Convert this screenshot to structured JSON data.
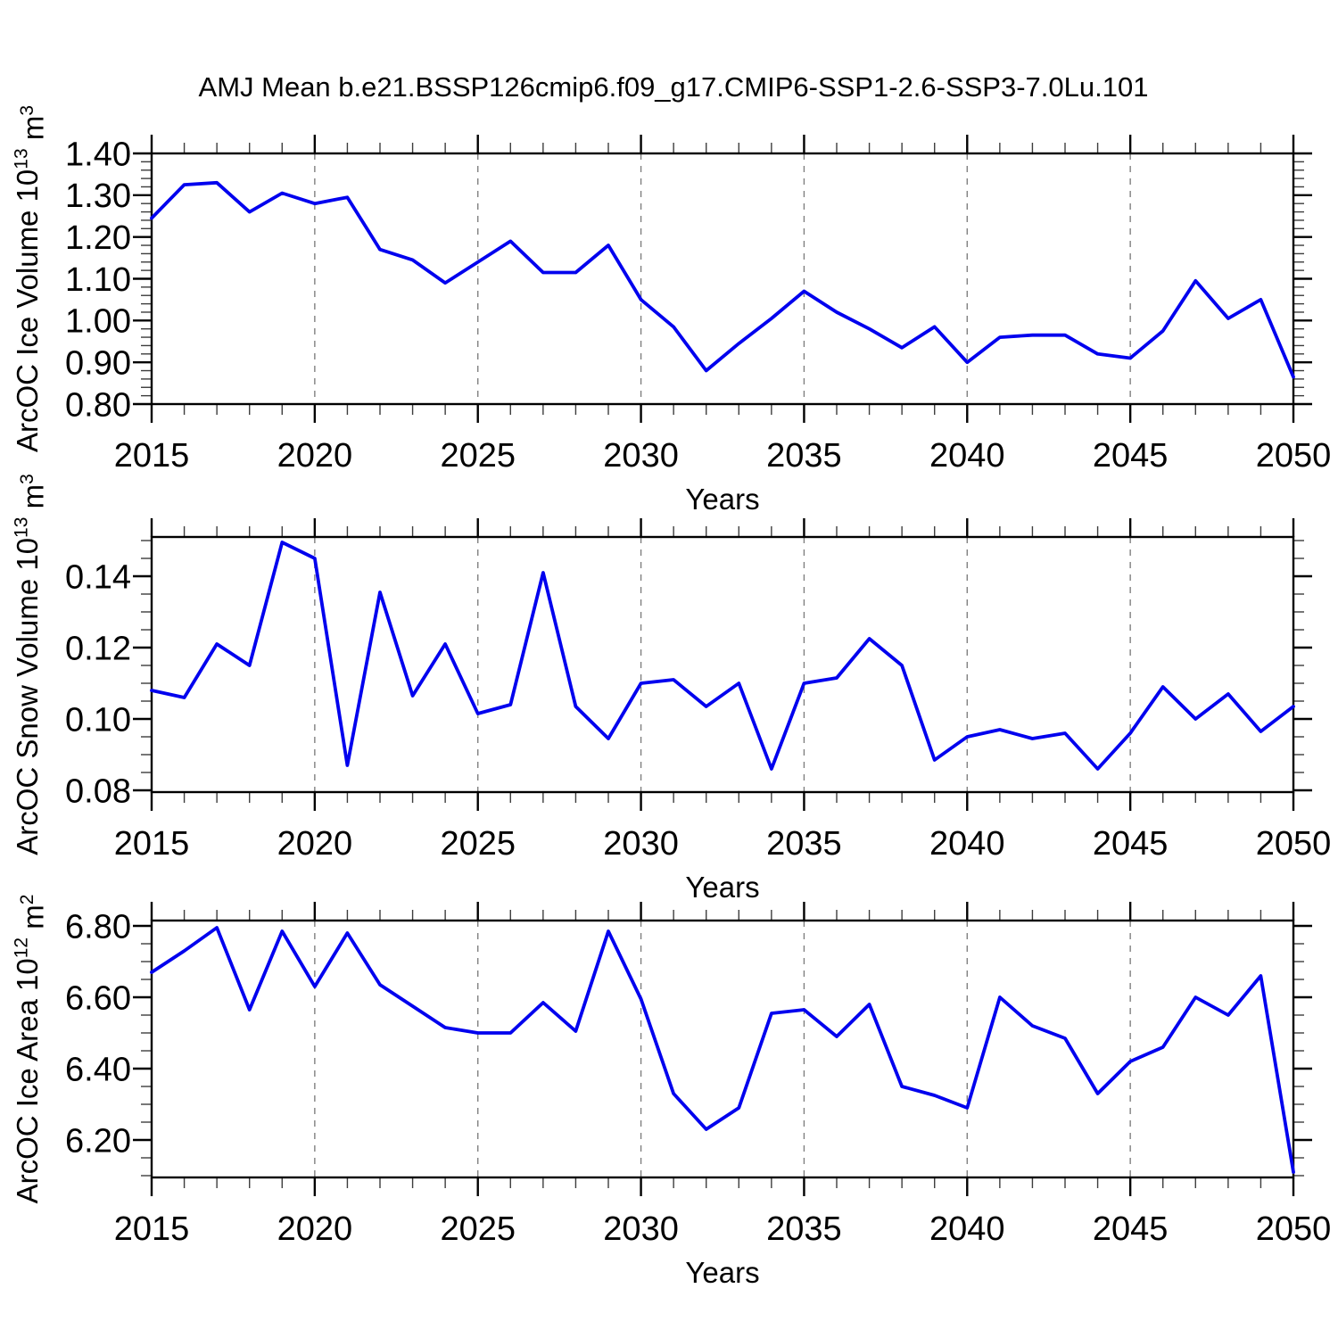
{
  "title": "AMJ Mean b.e21.BSSP126cmip6.f09_g17.CMIP6-SSP1-2.6-SSP3-7.0Lu.101",
  "colors": {
    "line": "#0000EE",
    "grid": "#808080",
    "axis": "#000000",
    "text": "#000000"
  },
  "chart_data": [
    {
      "type": "line",
      "panel": "ice-volume",
      "ylabel_text": "ArcOC Ice Volume 10^13 m^3",
      "ylabel_parts": [
        {
          "t": "ArcOC Ice Volume 10",
          "sup": false
        },
        {
          "t": "13",
          "sup": true
        },
        {
          "t": " m",
          "sup": false
        },
        {
          "t": "3",
          "sup": true
        }
      ],
      "xlabel": "Years",
      "xlim": [
        2015,
        2050
      ],
      "ylim": [
        0.8,
        1.4
      ],
      "xticks": [
        2015,
        2020,
        2025,
        2030,
        2035,
        2040,
        2045,
        2050
      ],
      "xtick_labels": [
        "2015",
        "2020",
        "2025",
        "2030",
        "2035",
        "2040",
        "2045",
        "2050"
      ],
      "xminor_step": 1,
      "yticks": [
        0.8,
        0.9,
        1.0,
        1.1,
        1.2,
        1.3,
        1.4
      ],
      "ytick_labels": [
        "0.80",
        "0.90",
        "1.00",
        "1.10",
        "1.20",
        "1.30",
        "1.40"
      ],
      "yminor_step": 0.02,
      "gridlines_x": [
        2020,
        2025,
        2030,
        2035,
        2040,
        2045
      ],
      "grid_on": true,
      "legend": "none",
      "x": [
        2015,
        2016,
        2017,
        2018,
        2019,
        2020,
        2021,
        2022,
        2023,
        2024,
        2025,
        2026,
        2027,
        2028,
        2029,
        2030,
        2031,
        2032,
        2033,
        2034,
        2035,
        2036,
        2037,
        2038,
        2039,
        2040,
        2041,
        2042,
        2043,
        2044,
        2045,
        2046,
        2047,
        2048,
        2049,
        2050
      ],
      "values": [
        1.245,
        1.325,
        1.33,
        1.26,
        1.305,
        1.28,
        1.295,
        1.17,
        1.145,
        1.09,
        1.14,
        1.19,
        1.115,
        1.115,
        1.18,
        1.05,
        0.985,
        0.88,
        0.945,
        1.005,
        1.07,
        1.02,
        0.98,
        0.935,
        0.985,
        0.9,
        0.96,
        0.965,
        0.965,
        0.92,
        0.91,
        0.975,
        1.095,
        1.005,
        1.05,
        0.865
      ]
    },
    {
      "type": "line",
      "panel": "snow-volume",
      "ylabel_text": "ArcOC Snow Volume 10^13 m^3",
      "ylabel_parts": [
        {
          "t": "ArcOC Snow Volume 10",
          "sup": false
        },
        {
          "t": "13",
          "sup": true
        },
        {
          "t": " m",
          "sup": false
        },
        {
          "t": "3",
          "sup": true
        }
      ],
      "xlabel": "Years",
      "xlim": [
        2015,
        2050
      ],
      "ylim": [
        0.0795,
        0.151
      ],
      "xticks": [
        2015,
        2020,
        2025,
        2030,
        2035,
        2040,
        2045,
        2050
      ],
      "xtick_labels": [
        "2015",
        "2020",
        "2025",
        "2030",
        "2035",
        "2040",
        "2045",
        "2050"
      ],
      "xminor_step": 1,
      "yticks": [
        0.08,
        0.1,
        0.12,
        0.14
      ],
      "ytick_labels": [
        "0.08",
        "0.10",
        "0.12",
        "0.14"
      ],
      "yminor_step": 0.005,
      "gridlines_x": [
        2020,
        2025,
        2030,
        2035,
        2040,
        2045
      ],
      "grid_on": true,
      "legend": "none",
      "x": [
        2015,
        2016,
        2017,
        2018,
        2019,
        2020,
        2021,
        2022,
        2023,
        2024,
        2025,
        2026,
        2027,
        2028,
        2029,
        2030,
        2031,
        2032,
        2033,
        2034,
        2035,
        2036,
        2037,
        2038,
        2039,
        2040,
        2041,
        2042,
        2043,
        2044,
        2045,
        2046,
        2047,
        2048,
        2049,
        2050
      ],
      "values": [
        0.108,
        0.106,
        0.121,
        0.115,
        0.1495,
        0.145,
        0.087,
        0.1355,
        0.1065,
        0.121,
        0.1015,
        0.104,
        0.141,
        0.1035,
        0.0945,
        0.11,
        0.111,
        0.1035,
        0.11,
        0.086,
        0.11,
        0.1115,
        0.1225,
        0.115,
        0.0885,
        0.095,
        0.097,
        0.0945,
        0.096,
        0.086,
        0.096,
        0.109,
        0.1,
        0.107,
        0.0965,
        0.1035
      ]
    },
    {
      "type": "line",
      "panel": "ice-area",
      "ylabel_text": "ArcOC Ice Area 10^12 m^2",
      "ylabel_parts": [
        {
          "t": "ArcOC Ice Area 10",
          "sup": false
        },
        {
          "t": "12",
          "sup": true
        },
        {
          "t": " m",
          "sup": false
        },
        {
          "t": "2",
          "sup": true
        }
      ],
      "xlabel": "Years",
      "xlim": [
        2015,
        2050
      ],
      "ylim": [
        6.095,
        6.815
      ],
      "xticks": [
        2015,
        2020,
        2025,
        2030,
        2035,
        2040,
        2045,
        2050
      ],
      "xtick_labels": [
        "2015",
        "2020",
        "2025",
        "2030",
        "2035",
        "2040",
        "2045",
        "2050"
      ],
      "xminor_step": 1,
      "yticks": [
        6.2,
        6.4,
        6.6,
        6.8
      ],
      "ytick_labels": [
        "6.20",
        "6.40",
        "6.60",
        "6.80"
      ],
      "yminor_step": 0.05,
      "gridlines_x": [
        2020,
        2025,
        2030,
        2035,
        2040,
        2045
      ],
      "grid_on": true,
      "legend": "none",
      "x": [
        2015,
        2016,
        2017,
        2018,
        2019,
        2020,
        2021,
        2022,
        2023,
        2024,
        2025,
        2026,
        2027,
        2028,
        2029,
        2030,
        2031,
        2032,
        2033,
        2034,
        2035,
        2036,
        2037,
        2038,
        2039,
        2040,
        2041,
        2042,
        2043,
        2044,
        2045,
        2046,
        2047,
        2048,
        2049,
        2050
      ],
      "values": [
        6.67,
        6.73,
        6.795,
        6.565,
        6.785,
        6.63,
        6.78,
        6.635,
        6.575,
        6.515,
        6.5,
        6.5,
        6.585,
        6.505,
        6.785,
        6.595,
        6.33,
        6.23,
        6.29,
        6.555,
        6.565,
        6.49,
        6.58,
        6.35,
        6.325,
        6.29,
        6.6,
        6.52,
        6.485,
        6.33,
        6.42,
        6.46,
        6.6,
        6.55,
        6.66,
        6.11
      ]
    }
  ]
}
